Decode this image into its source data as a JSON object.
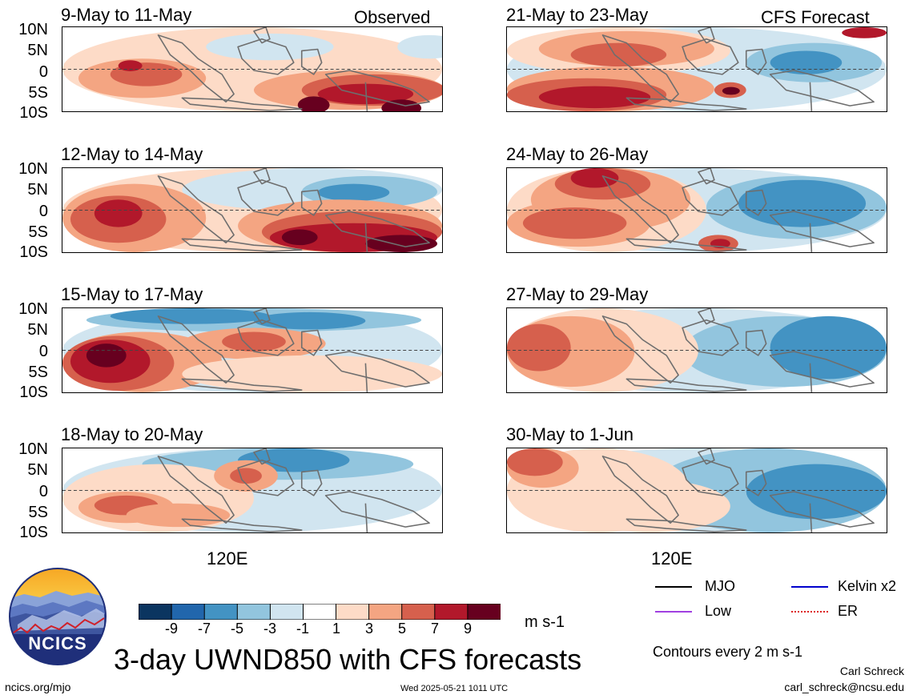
{
  "colors": {
    "neg9": "#0b3560",
    "neg7": "#2166ac",
    "neg5": "#4393c3",
    "neg3": "#92c5de",
    "neg1": "#d1e5f0",
    "zero": "#ffffff",
    "pos1": "#fddbc7",
    "pos3": "#f4a582",
    "pos5": "#d6604d",
    "pos7": "#b2182b",
    "pos9": "#67001f",
    "land": "#6e6e6e",
    "mjo": "#000000",
    "low": "#a040e0",
    "kelvin": "#0000cc",
    "er": "#dd2222"
  },
  "panels": {
    "observed_label": "Observed",
    "forecast_label": "CFS Forecast",
    "left": [
      {
        "title": "9-May to 11-May"
      },
      {
        "title": "12-May to 14-May"
      },
      {
        "title": "15-May to 17-May"
      },
      {
        "title": "18-May to 20-May"
      }
    ],
    "right": [
      {
        "title": "21-May to 23-May"
      },
      {
        "title": "24-May to 26-May"
      },
      {
        "title": "27-May to 29-May"
      },
      {
        "title": "30-May to 1-Jun"
      }
    ],
    "lat_ticks": [
      "10N",
      "5N",
      "0",
      "5S",
      "10S"
    ],
    "lon_label": "120E"
  },
  "colorbar": {
    "ticks": [
      "-9",
      "-7",
      "-5",
      "-3",
      "-1",
      "1",
      "3",
      "5",
      "7",
      "9"
    ],
    "units": "m s-1"
  },
  "legend": {
    "mjo": "MJO",
    "kelvin": "Kelvin x2",
    "low": "Low",
    "er": "ER",
    "contours_note": "Contours every 2 m s-1"
  },
  "footer": {
    "title": "3-day UWND850 with CFS forecasts",
    "logo_text": "NCICS",
    "url": "ncics.org/mjo",
    "timestamp": "Wed 2025-05-21 1011 UTC",
    "author": "Carl Schreck",
    "email": "carl_schreck@ncsu.edu"
  }
}
